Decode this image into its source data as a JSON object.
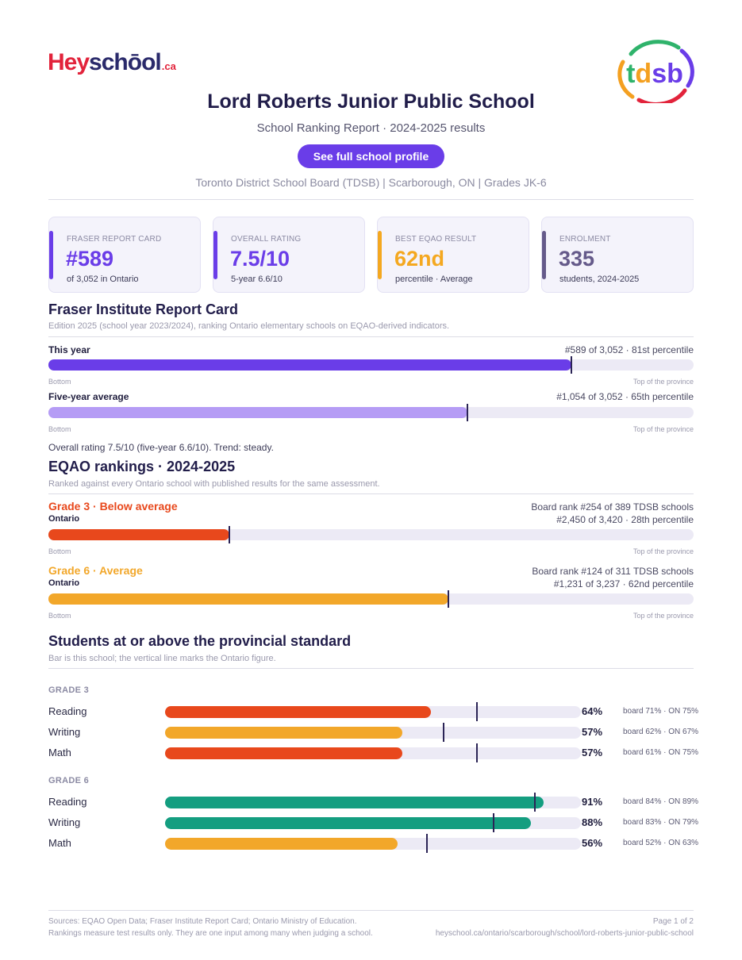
{
  "brand": {
    "hey": "Hey",
    "school": "schōol",
    "ca": ".ca"
  },
  "board_logo": {
    "text": "tdsb",
    "colors": [
      "#2fb36b",
      "#f4a020",
      "#6a3de8",
      "#e2233b"
    ]
  },
  "header": {
    "title": "Lord Roberts Junior Public School",
    "subtitle": "School Ranking Report  ·  2024-2025 results",
    "profile_button": "See full school profile",
    "meta": "Toronto District School Board (TDSB)  |  Scarborough, ON  |  Grades JK-6"
  },
  "cards": [
    {
      "label": "FRASER REPORT CARD",
      "value": "#589",
      "sub": "of 3,052 in Ontario",
      "color": "#6a3de8"
    },
    {
      "label": "OVERALL RATING",
      "value": "7.5/10",
      "sub": "5-year 6.6/10",
      "color": "#6a3de8"
    },
    {
      "label": "BEST EQAO RESULT",
      "value": "62nd",
      "sub": "percentile  ·  Average",
      "color": "#f4a820"
    },
    {
      "label": "ENROLMENT",
      "value": "335",
      "sub": "students, 2024-2025",
      "color": "#655a8a"
    }
  ],
  "fraser": {
    "heading": "Fraser Institute Report Card",
    "note": "Edition 2025 (school year 2023/2024), ranking Ontario elementary schools on EQAO-derived indicators.",
    "rows": [
      {
        "label": "This year",
        "right": "#589 of 3,052  ·  81st percentile",
        "fraction": 0.81,
        "color": "#6a3de8"
      },
      {
        "label": "Five-year average",
        "right": "#1,054 of 3,052  ·  65th percentile",
        "fraction": 0.65,
        "color": "#b59cf5"
      }
    ],
    "axis_left": "Bottom",
    "axis_right": "Top of the province",
    "summary": "Overall rating 7.5/10 (five-year 6.6/10). Trend: steady."
  },
  "eqao": {
    "heading": "EQAO rankings  ·  2024-2025",
    "note": "Ranked against every Ontario school with published results for the same assessment.",
    "rows": [
      {
        "grade": "Grade 3  ·  Below average",
        "scope": "Ontario",
        "board_rank": "Board rank #254 of 389 TDSB schools",
        "right": "#2,450 of 3,420  ·  28th percentile",
        "fraction": 0.28,
        "color": "#e8481c"
      },
      {
        "grade": "Grade 6  ·  Average",
        "scope": "Ontario",
        "board_rank": "Board rank #124 of 311 TDSB schools",
        "right": "#1,231 of 3,237  ·  62nd percentile",
        "fraction": 0.62,
        "color": "#f2a72a"
      }
    ],
    "axis_left": "Bottom",
    "axis_right": "Top of the province"
  },
  "standards": {
    "heading": "Students at or above the provincial standard",
    "note": "Bar is this school; the vertical line marks the Ontario figure.",
    "groups": [
      {
        "label": "GRADE 3",
        "items": [
          {
            "subject": "Reading",
            "pct": "64%",
            "value": 64,
            "ontario": 75,
            "cmp": "board 71%  ·  ON 75%",
            "color": "#e8481c"
          },
          {
            "subject": "Writing",
            "pct": "57%",
            "value": 57,
            "ontario": 67,
            "cmp": "board 62%  ·  ON 67%",
            "color": "#f2a72a"
          },
          {
            "subject": "Math",
            "pct": "57%",
            "value": 57,
            "ontario": 75,
            "cmp": "board 61%  ·  ON 75%",
            "color": "#e8481c"
          }
        ]
      },
      {
        "label": "GRADE 6",
        "items": [
          {
            "subject": "Reading",
            "pct": "91%",
            "value": 91,
            "ontario": 89,
            "cmp": "board 84%  ·  ON 89%",
            "color": "#149e80"
          },
          {
            "subject": "Writing",
            "pct": "88%",
            "value": 88,
            "ontario": 79,
            "cmp": "board 83%  ·  ON 79%",
            "color": "#149e80"
          },
          {
            "subject": "Math",
            "pct": "56%",
            "value": 56,
            "ontario": 63,
            "cmp": "board 52%  ·  ON 63%",
            "color": "#f2a72a"
          }
        ]
      }
    ]
  },
  "footer": {
    "sources": "Sources: EQAO Open Data; Fraser Institute Report Card; Ontario Ministry of Education.",
    "disclaimer": "Rankings measure test results only. They are one input among many when judging a school.",
    "page": "Page 1 of 2",
    "url": "heyschool.ca/ontario/scarborough/school/lord-roberts-junior-public-school"
  }
}
